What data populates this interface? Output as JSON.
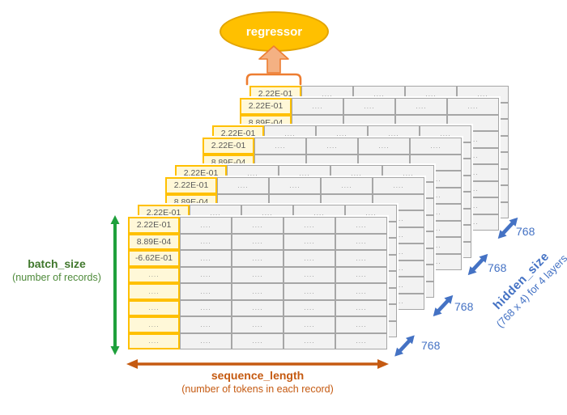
{
  "diagram": {
    "regressor_label": "regressor",
    "stack": {
      "num_tables": 8,
      "columns": 5,
      "rows": 8,
      "front_table": {
        "rows": [
          [
            "2.22E-01",
            "...",
            "...",
            "...",
            "..."
          ],
          [
            "8.89E-04",
            "...",
            "...",
            "...",
            "..."
          ],
          [
            "-6.62E-01",
            "...",
            "...",
            "...",
            "..."
          ],
          [
            "...",
            "...",
            "...",
            "...",
            "..."
          ],
          [
            "...",
            "...",
            "...",
            "...",
            "..."
          ],
          [
            "...",
            "...",
            "...",
            "...",
            "..."
          ],
          [
            "...",
            "...",
            "...",
            "...",
            "..."
          ],
          [
            "...",
            "...",
            "...",
            "...",
            "..."
          ]
        ]
      },
      "back_table": {
        "rows": [
          [
            "2.22E-01",
            "...",
            "...",
            "...",
            "..."
          ],
          [
            "8.89E-04",
            "",
            "",
            "",
            ""
          ],
          [
            "-6.62E-01",
            "...",
            "...",
            "...",
            "..."
          ],
          [
            "...",
            "...",
            "...",
            "...",
            "..."
          ],
          [
            "...",
            "...",
            "...",
            "...",
            "..."
          ],
          [
            "...",
            "...",
            "...",
            "...",
            "..."
          ],
          [
            "...",
            "...",
            "...",
            "...",
            "..."
          ],
          [
            "...",
            "...",
            "...",
            "...",
            "..."
          ]
        ]
      }
    },
    "labels": {
      "batch_size": {
        "title": "batch_size",
        "subtitle": "(number of records)"
      },
      "sequence_length": {
        "title": "sequence_length",
        "subtitle": "(number of tokens in each record)"
      },
      "hidden_size": {
        "title": "hidden_size",
        "subtitle": "(768 x 4) for 4 layers"
      },
      "dims": [
        "768",
        "768",
        "768",
        "768"
      ]
    },
    "colors": {
      "accent_gold": "#FFC000",
      "accent_orange": "#ED7D31",
      "arrow_orange_dark": "#C55A11",
      "accent_green": "#1EA03C",
      "green_text": "#4E8A3A",
      "accent_blue": "#4472C4",
      "cell_gray": "#F2F2F2",
      "cell_yellow": "#FFF8D8"
    }
  }
}
